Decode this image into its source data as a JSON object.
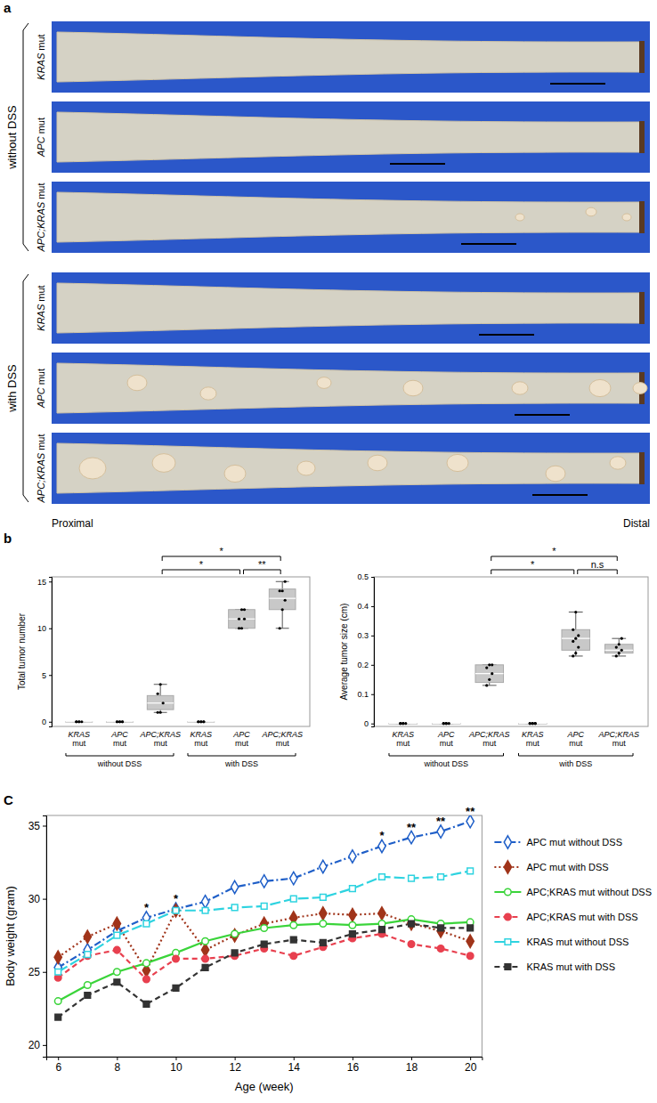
{
  "photo_panel": {
    "panel": "a",
    "groups": [
      {
        "label": "without DSS",
        "rows": [
          "KRAS mut",
          "APC mut",
          "APC;KRAS mut"
        ]
      },
      {
        "label": "with DSS",
        "rows": [
          "KRAS mut",
          "APC mut",
          "APC;KRAS mut"
        ]
      }
    ],
    "proximal": "Proximal",
    "distal": "Distal"
  },
  "chart_data": [
    {
      "type": "box",
      "panel": "b",
      "y_label": "Total tumor number",
      "categories": [
        "KRAS mut",
        "APC mut",
        "APC;KRAS mut",
        "KRAS mut",
        "APC mut",
        "APC;KRAS mut"
      ],
      "groups": [
        "without DSS",
        "with DSS"
      ],
      "values": [
        [
          0,
          0,
          0,
          0,
          0
        ],
        [
          0,
          0,
          0,
          0,
          0,
          0
        ],
        [
          1,
          1,
          2,
          3,
          4
        ],
        [
          0,
          0,
          0,
          0,
          0,
          0
        ],
        [
          10,
          10,
          11,
          11,
          12,
          12
        ],
        [
          10,
          12,
          13,
          14,
          14,
          15
        ]
      ],
      "boxes": [
        {
          "min": 0,
          "q1": 0,
          "median": 0,
          "q3": 0,
          "max": 0
        },
        {
          "min": 0,
          "q1": 0,
          "median": 0,
          "q3": 0,
          "max": 0
        },
        {
          "min": 1,
          "q1": 1.3,
          "median": 2,
          "q3": 2.8,
          "max": 4
        },
        {
          "min": 0,
          "q1": 0,
          "median": 0,
          "q3": 0,
          "max": 0
        },
        {
          "min": 10,
          "q1": 10,
          "median": 11,
          "q3": 12,
          "max": 12
        },
        {
          "min": 10,
          "q1": 12,
          "median": 13.2,
          "q3": 14.2,
          "max": 15
        }
      ],
      "comparisons": [
        {
          "from": 2,
          "to": 4,
          "label": "*"
        },
        {
          "from": 4,
          "to": 5,
          "label": "**"
        },
        {
          "from": 2,
          "to": 5,
          "label": "*"
        }
      ],
      "ylim": [
        -0.5,
        15.5
      ],
      "yticks": [
        0,
        5,
        10,
        15
      ],
      "color": "#c8c8c8"
    },
    {
      "type": "box",
      "y_label": "Average tumor size (cm)",
      "categories": [
        "KRAS mut",
        "APC mut",
        "APC;KRAS mut",
        "KRAS mut",
        "APC mut",
        "APC;KRAS mut"
      ],
      "groups": [
        "without DSS",
        "with DSS"
      ],
      "values": [
        [
          0,
          0,
          0,
          0,
          0
        ],
        [
          0,
          0,
          0,
          0,
          0
        ],
        [
          0.13,
          0.15,
          0.17,
          0.19,
          0.2,
          0.2
        ],
        [
          0,
          0,
          0,
          0,
          0,
          0
        ],
        [
          0.23,
          0.24,
          0.26,
          0.28,
          0.29,
          0.3,
          0.32,
          0.38
        ],
        [
          0.23,
          0.24,
          0.25,
          0.26,
          0.27,
          0.29
        ]
      ],
      "boxes": [
        {
          "min": 0,
          "q1": 0,
          "median": 0,
          "q3": 0,
          "max": 0
        },
        {
          "min": 0,
          "q1": 0,
          "median": 0,
          "q3": 0,
          "max": 0
        },
        {
          "min": 0.13,
          "q1": 0.14,
          "median": 0.17,
          "q3": 0.2,
          "max": 0.2
        },
        {
          "min": 0,
          "q1": 0,
          "median": 0,
          "q3": 0,
          "max": 0
        },
        {
          "min": 0.23,
          "q1": 0.25,
          "median": 0.29,
          "q3": 0.32,
          "max": 0.38
        },
        {
          "min": 0.23,
          "q1": 0.24,
          "median": 0.25,
          "q3": 0.27,
          "max": 0.29
        }
      ],
      "comparisons": [
        {
          "from": 2,
          "to": 4,
          "label": "*"
        },
        {
          "from": 4,
          "to": 5,
          "label": "n.s"
        },
        {
          "from": 2,
          "to": 5,
          "label": "*"
        }
      ],
      "ylim": [
        -0.01,
        0.5
      ],
      "yticks": [
        0,
        0.1,
        0.2,
        0.3,
        0.4,
        0.5
      ],
      "color": "#c8c8c8"
    },
    {
      "type": "line",
      "panel": "C",
      "x_label": "Age (week)",
      "y_label": "Body weight (gram)",
      "x": [
        6,
        7,
        8,
        9,
        10,
        11,
        12,
        13,
        14,
        15,
        16,
        17,
        18,
        19,
        20
      ],
      "series": [
        {
          "name": "APC mut without DSS",
          "color": "#1f5fc8",
          "marker": "diamond-open",
          "line_style": "dashdot",
          "values": [
            25.3,
            26.5,
            27.8,
            28.7,
            29.3,
            29.8,
            30.8,
            31.2,
            31.4,
            32.2,
            32.9,
            33.6,
            34.2,
            34.6,
            35.3
          ]
        },
        {
          "name": "APC mut with DSS",
          "color": "#a0341a",
          "marker": "diamond",
          "line_style": "dotted",
          "values": [
            26.0,
            27.4,
            28.3,
            25.1,
            29.2,
            26.5,
            27.5,
            28.3,
            28.7,
            29.0,
            28.9,
            29.0,
            28.3,
            27.8,
            27.1
          ]
        },
        {
          "name": "APC;KRAS mut without DSS",
          "color": "#3ad43a",
          "marker": "circle-open",
          "line_style": "solid",
          "values": [
            23.0,
            24.1,
            25.0,
            25.6,
            26.3,
            27.1,
            27.6,
            28.0,
            28.2,
            28.3,
            28.2,
            28.3,
            28.6,
            28.3,
            28.4
          ]
        },
        {
          "name": "APC;KRAS mut with DSS",
          "color": "#e8404f",
          "marker": "circle",
          "line_style": "dashed",
          "values": [
            24.6,
            26.1,
            26.5,
            24.5,
            25.9,
            25.9,
            26.1,
            26.6,
            26.1,
            26.7,
            27.3,
            27.6,
            26.9,
            26.6,
            26.1
          ]
        },
        {
          "name": "KRAS mut without DSS",
          "color": "#2ed3e0",
          "marker": "square-open",
          "line_style": "longdash",
          "values": [
            25.0,
            26.2,
            27.5,
            28.3,
            29.2,
            29.2,
            29.4,
            29.5,
            30.0,
            30.1,
            30.7,
            31.5,
            31.4,
            31.5,
            31.9
          ]
        },
        {
          "name": "KRAS mut with DSS",
          "color": "#333333",
          "marker": "square",
          "line_style": "dashed",
          "values": [
            21.9,
            23.4,
            24.3,
            22.8,
            23.9,
            25.3,
            26.3,
            26.9,
            27.2,
            27.0,
            27.6,
            27.9,
            28.3,
            28.0,
            28.0
          ]
        }
      ],
      "annotations": [
        {
          "x": 9,
          "label": "*"
        },
        {
          "x": 10,
          "label": "*"
        },
        {
          "x": 17,
          "label": "*"
        },
        {
          "x": 18,
          "label": "**"
        },
        {
          "x": 19,
          "label": "**"
        },
        {
          "x": 20,
          "label": "**"
        }
      ],
      "xlim": [
        5.6,
        20.4
      ],
      "xticks": [
        6,
        8,
        10,
        12,
        14,
        16,
        18,
        20
      ],
      "ylim": [
        19.2,
        35.7
      ],
      "yticks": [
        20,
        25,
        30,
        35
      ],
      "legend": "right",
      "grid": false
    }
  ]
}
